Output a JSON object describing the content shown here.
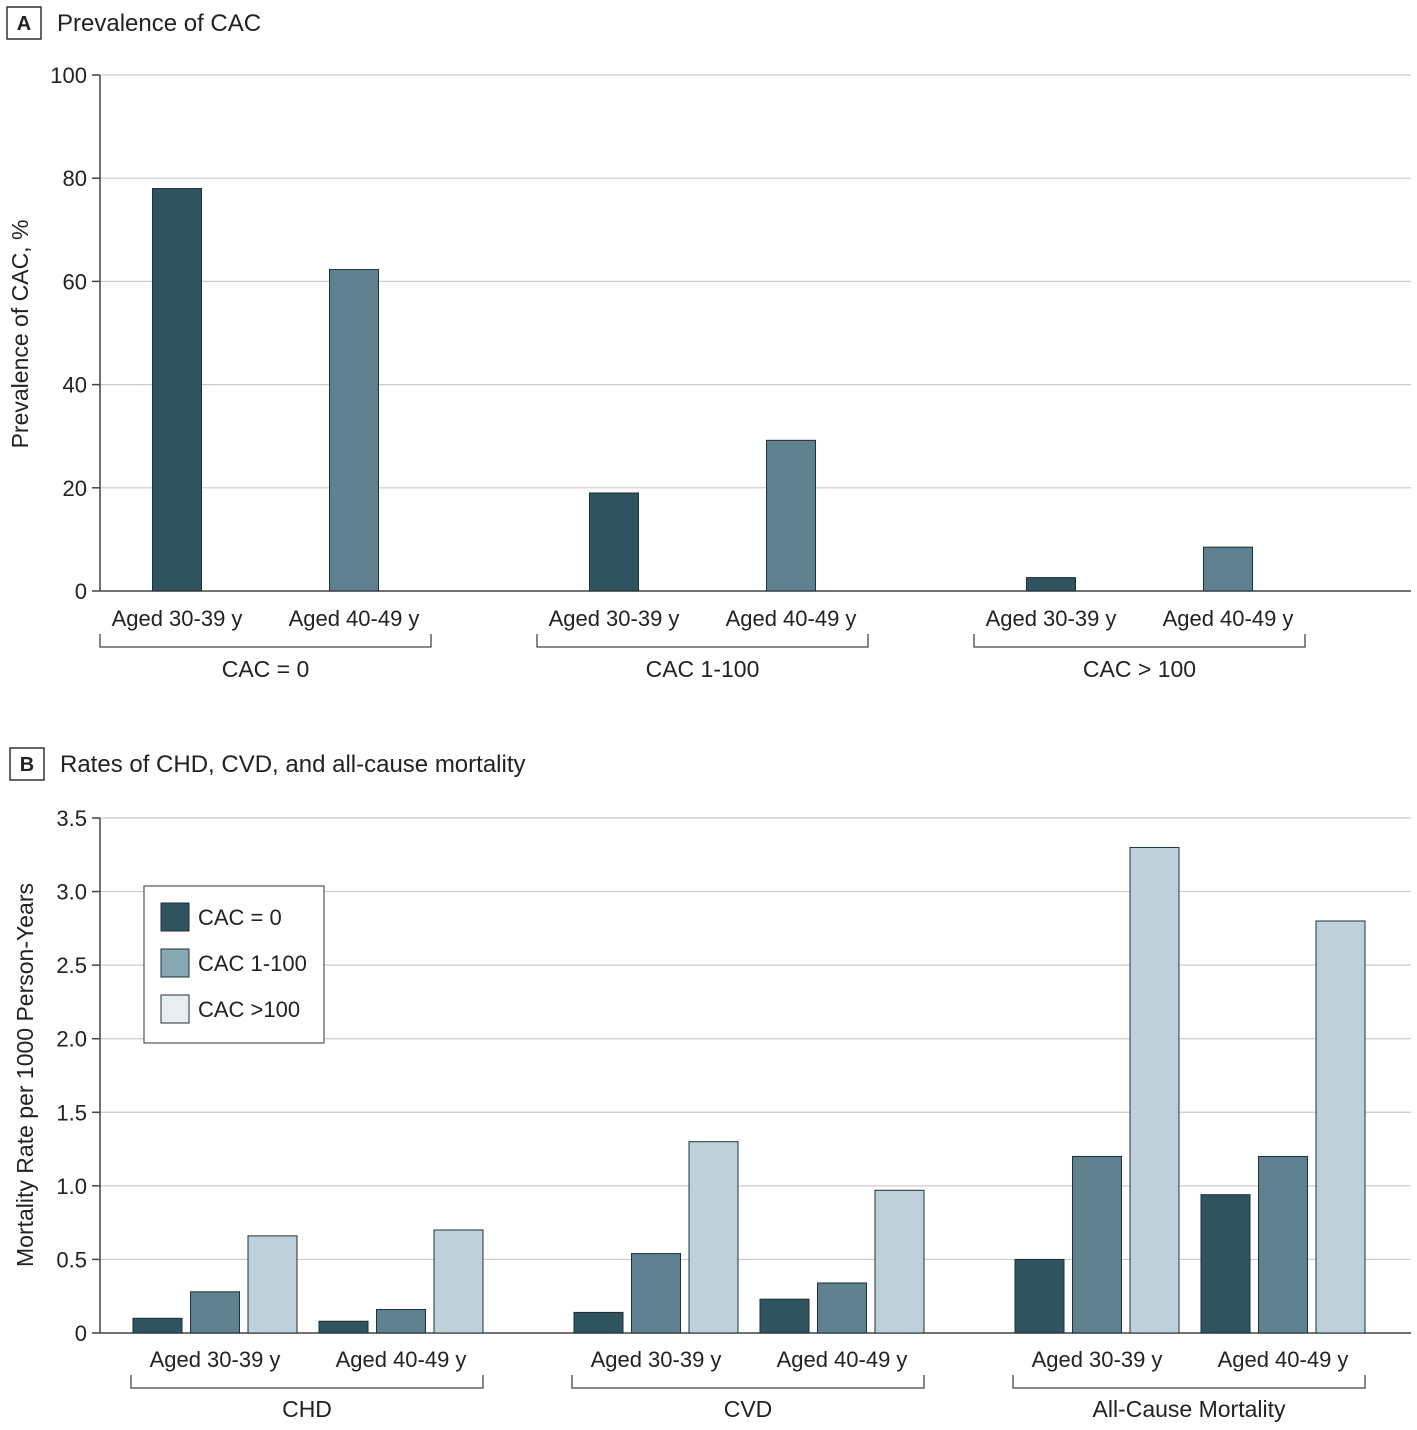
{
  "colors": {
    "dark": "#2f535f",
    "mid": "#5f808e",
    "light": "#bed0d9",
    "grid": "#cccccc",
    "axis": "#444444"
  },
  "chart_data": [
    {
      "type": "bar",
      "panel": "A",
      "title": "Prevalence of CAC",
      "ylabel": "Prevalence of CAC, %",
      "ylim": [
        0,
        100
      ],
      "yticks": [
        "0",
        "20",
        "40",
        "60",
        "80",
        "100"
      ],
      "grid": true,
      "groups": [
        {
          "label": "CAC = 0",
          "bars": [
            {
              "category": "Aged 30-39 y",
              "value": 78
            },
            {
              "category": "Aged 40-49 y",
              "value": 62.3
            }
          ]
        },
        {
          "label": "CAC 1-100",
          "bars": [
            {
              "category": "Aged 30-39 y",
              "value": 19
            },
            {
              "category": "Aged 40-49 y",
              "value": 29.2
            }
          ]
        },
        {
          "label": "CAC > 100",
          "bars": [
            {
              "category": "Aged 30-39 y",
              "value": 2.6
            },
            {
              "category": "Aged 40-49 y",
              "value": 8.5
            }
          ]
        }
      ]
    },
    {
      "type": "bar",
      "panel": "B",
      "title": "Rates of CHD, CVD, and all-cause mortality",
      "ylabel": "Mortality Rate per 1000 Person-Years",
      "ylim": [
        0,
        3.5
      ],
      "yticks": [
        "0",
        "0.5",
        "1.0",
        "1.5",
        "2.0",
        "2.5",
        "3.0",
        "3.5"
      ],
      "grid": true,
      "legend_position": "top-left",
      "legend": [
        "CAC = 0",
        "CAC 1-100",
        "CAC >100"
      ],
      "groups": [
        {
          "label": "CHD",
          "subgroups": [
            {
              "category": "Aged 30-39 y",
              "values": [
                0.1,
                0.28,
                0.66
              ]
            },
            {
              "category": "Aged 40-49 y",
              "values": [
                0.08,
                0.16,
                0.7
              ]
            }
          ]
        },
        {
          "label": "CVD",
          "subgroups": [
            {
              "category": "Aged 30-39 y",
              "values": [
                0.14,
                0.54,
                1.3
              ]
            },
            {
              "category": "Aged 40-49 y",
              "values": [
                0.23,
                0.34,
                0.97
              ]
            }
          ]
        },
        {
          "label": "All-Cause Mortality",
          "subgroups": [
            {
              "category": "Aged 30-39 y",
              "values": [
                0.5,
                1.2,
                3.3
              ]
            },
            {
              "category": "Aged 40-49 y",
              "values": [
                0.94,
                1.2,
                2.8
              ]
            }
          ]
        }
      ]
    }
  ]
}
